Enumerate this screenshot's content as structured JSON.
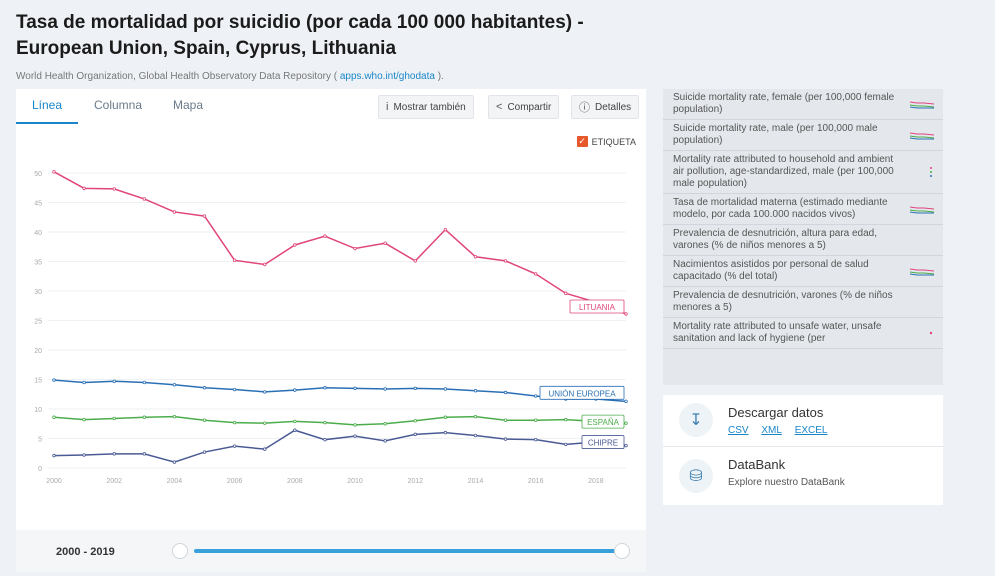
{
  "page": {
    "title": "Tasa de mortalidad por suicidio (por cada 100 000 habitantes) - European Union, Spain, Cyprus, Lithuania",
    "source_prefix": "World Health Organization, Global Health Observatory Data Repository (",
    "source_link": "apps.who.int/ghodata",
    "source_suffix": ")."
  },
  "tabs": [
    {
      "label": "Línea",
      "active": true
    },
    {
      "label": "Columna",
      "active": false
    },
    {
      "label": "Mapa",
      "active": false
    }
  ],
  "toolbar": {
    "show_also": "Mostrar también",
    "share": "Compartir",
    "details": "Detalles",
    "label_toggle": "ETIQUETA"
  },
  "chart_data": {
    "type": "line",
    "x": [
      2000,
      2001,
      2002,
      2003,
      2004,
      2005,
      2006,
      2007,
      2008,
      2009,
      2010,
      2011,
      2012,
      2013,
      2014,
      2015,
      2016,
      2017,
      2018,
      2019
    ],
    "x_ticks": [
      "2000",
      "2002",
      "2004",
      "2006",
      "2008",
      "2010",
      "2012",
      "2014",
      "2016",
      "2018"
    ],
    "y_ticks": [
      "0",
      "5",
      "10",
      "15",
      "20",
      "25",
      "30",
      "35",
      "40",
      "45",
      "50"
    ],
    "ylim": [
      0,
      50
    ],
    "series": [
      {
        "name": "LITUANIA",
        "color": "#e0457b",
        "values": [
          50.2,
          47.4,
          47.3,
          45.6,
          43.4,
          42.7,
          35.2,
          34.5,
          37.8,
          39.3,
          37.2,
          38.1,
          35.1,
          40.4,
          35.8,
          35.1,
          32.9,
          29.6,
          28.1,
          26.1
        ]
      },
      {
        "name": "UNIÓN EUROPEA",
        "color": "#2a6fb5",
        "values": [
          14.9,
          14.5,
          14.7,
          14.5,
          14.1,
          13.6,
          13.3,
          12.9,
          13.2,
          13.6,
          13.5,
          13.4,
          13.5,
          13.4,
          13.1,
          12.8,
          12.2,
          11.7,
          11.7,
          11.3
        ]
      },
      {
        "name": "ESPAÑA",
        "color": "#4bac4b",
        "values": [
          8.6,
          8.2,
          8.4,
          8.6,
          8.7,
          8.1,
          7.7,
          7.6,
          7.9,
          7.7,
          7.3,
          7.5,
          8.0,
          8.6,
          8.7,
          8.1,
          8.1,
          8.2,
          7.9,
          7.6
        ]
      },
      {
        "name": "CHIPRE",
        "color": "#4a5a94",
        "values": [
          2.1,
          2.2,
          2.4,
          2.4,
          1.0,
          2.7,
          3.7,
          3.2,
          6.4,
          4.8,
          5.4,
          4.6,
          5.7,
          6.0,
          5.5,
          4.9,
          4.8,
          4.0,
          4.4,
          3.8
        ]
      }
    ]
  },
  "year_range": "2000 - 2019",
  "sidebar": {
    "items": [
      {
        "label": "Suicide mortality rate, female (per 100,000 female population)",
        "spark": "sparkline-icon"
      },
      {
        "label": "Suicide mortality rate, male (per 100,000 male population)",
        "spark": "sparkline-icon"
      },
      {
        "label": "Mortality rate attributed to household and ambient air pollution, age-standardized, male (per 100,000 male population)",
        "spark": "dots-icon"
      },
      {
        "label": "Tasa de mortalidad materna (estimado mediante modelo, por cada 100.000 nacidos vivos)",
        "spark": "sparkline-icon"
      },
      {
        "label": "Prevalencia de desnutrición, altura para edad, varones (% de niños menores a 5)",
        "spark": ""
      },
      {
        "label": "Nacimientos asistidos por personal de salud capacitado (% del total)",
        "spark": "sparkline-icon"
      },
      {
        "label": "Prevalencia de desnutrición, varones (% de niños menores a 5)",
        "spark": ""
      },
      {
        "label": "Mortality rate attributed to unsafe water, unsafe sanitation and lack of hygiene (per",
        "spark": "dot-icon"
      }
    ]
  },
  "download": {
    "title": "Descargar datos",
    "csv": "CSV",
    "xml": "XML",
    "excel": "EXCEL"
  },
  "databank": {
    "title": "DataBank",
    "subtitle": "Explore nuestro DataBank"
  }
}
